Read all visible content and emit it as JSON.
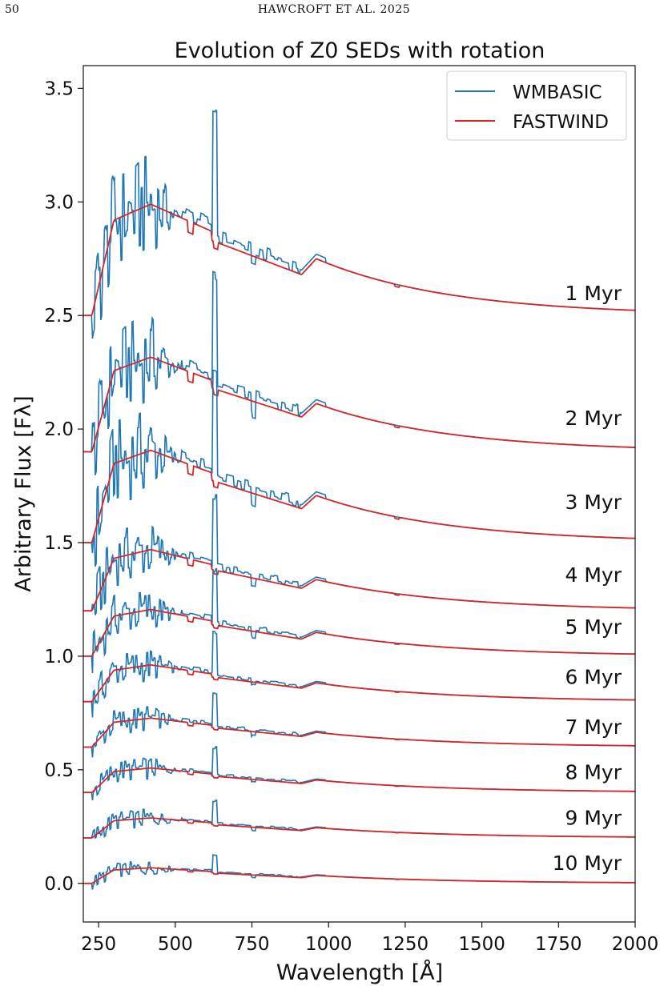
{
  "header": {
    "page_number": "50",
    "running_head": "HAWCROFT ET AL. 2025"
  },
  "chart_data": {
    "type": "line",
    "title": "Evolution of Z0 SEDs with rotation",
    "xlabel": "Wavelength [Å]",
    "ylabel": "Arbitrary Flux [Fλ]",
    "xlim": [
      200,
      2000
    ],
    "ylim": [
      -0.17,
      3.6
    ],
    "xticks": [
      250,
      500,
      750,
      1000,
      1250,
      1500,
      1750,
      2000
    ],
    "yticks": [
      0.0,
      0.5,
      1.0,
      1.5,
      2.0,
      2.5,
      3.0,
      3.5
    ],
    "grid": false,
    "legend": {
      "placement": "top-right",
      "entries": [
        {
          "name": "WMBASIC",
          "color": "#1f77b4"
        },
        {
          "name": "FASTWIND",
          "color": "#d62728"
        }
      ]
    },
    "series_colors": {
      "WMBASIC": "#1f77b4",
      "FASTWIND": "#d62728"
    },
    "age_labels": [
      "1 Myr",
      "2 Myr",
      "3 Myr",
      "4 Myr",
      "5 Myr",
      "6 Myr",
      "7 Myr",
      "8 Myr",
      "9 Myr",
      "10 Myr"
    ],
    "label_y": [
      2.6,
      2.05,
      1.68,
      1.36,
      1.13,
      0.91,
      0.69,
      0.49,
      0.29,
      0.09
    ],
    "offsets": [
      2.5,
      1.9,
      1.5,
      1.2,
      1.0,
      0.8,
      0.6,
      0.4,
      0.2,
      0.0
    ],
    "amplitudes": [
      1.0,
      0.85,
      0.83,
      0.55,
      0.42,
      0.33,
      0.26,
      0.22,
      0.18,
      0.14
    ],
    "tail_levels": [
      2.535,
      1.935,
      1.545,
      1.235,
      1.025,
      0.815,
      0.615,
      0.41,
      0.21,
      0.01
    ]
  }
}
